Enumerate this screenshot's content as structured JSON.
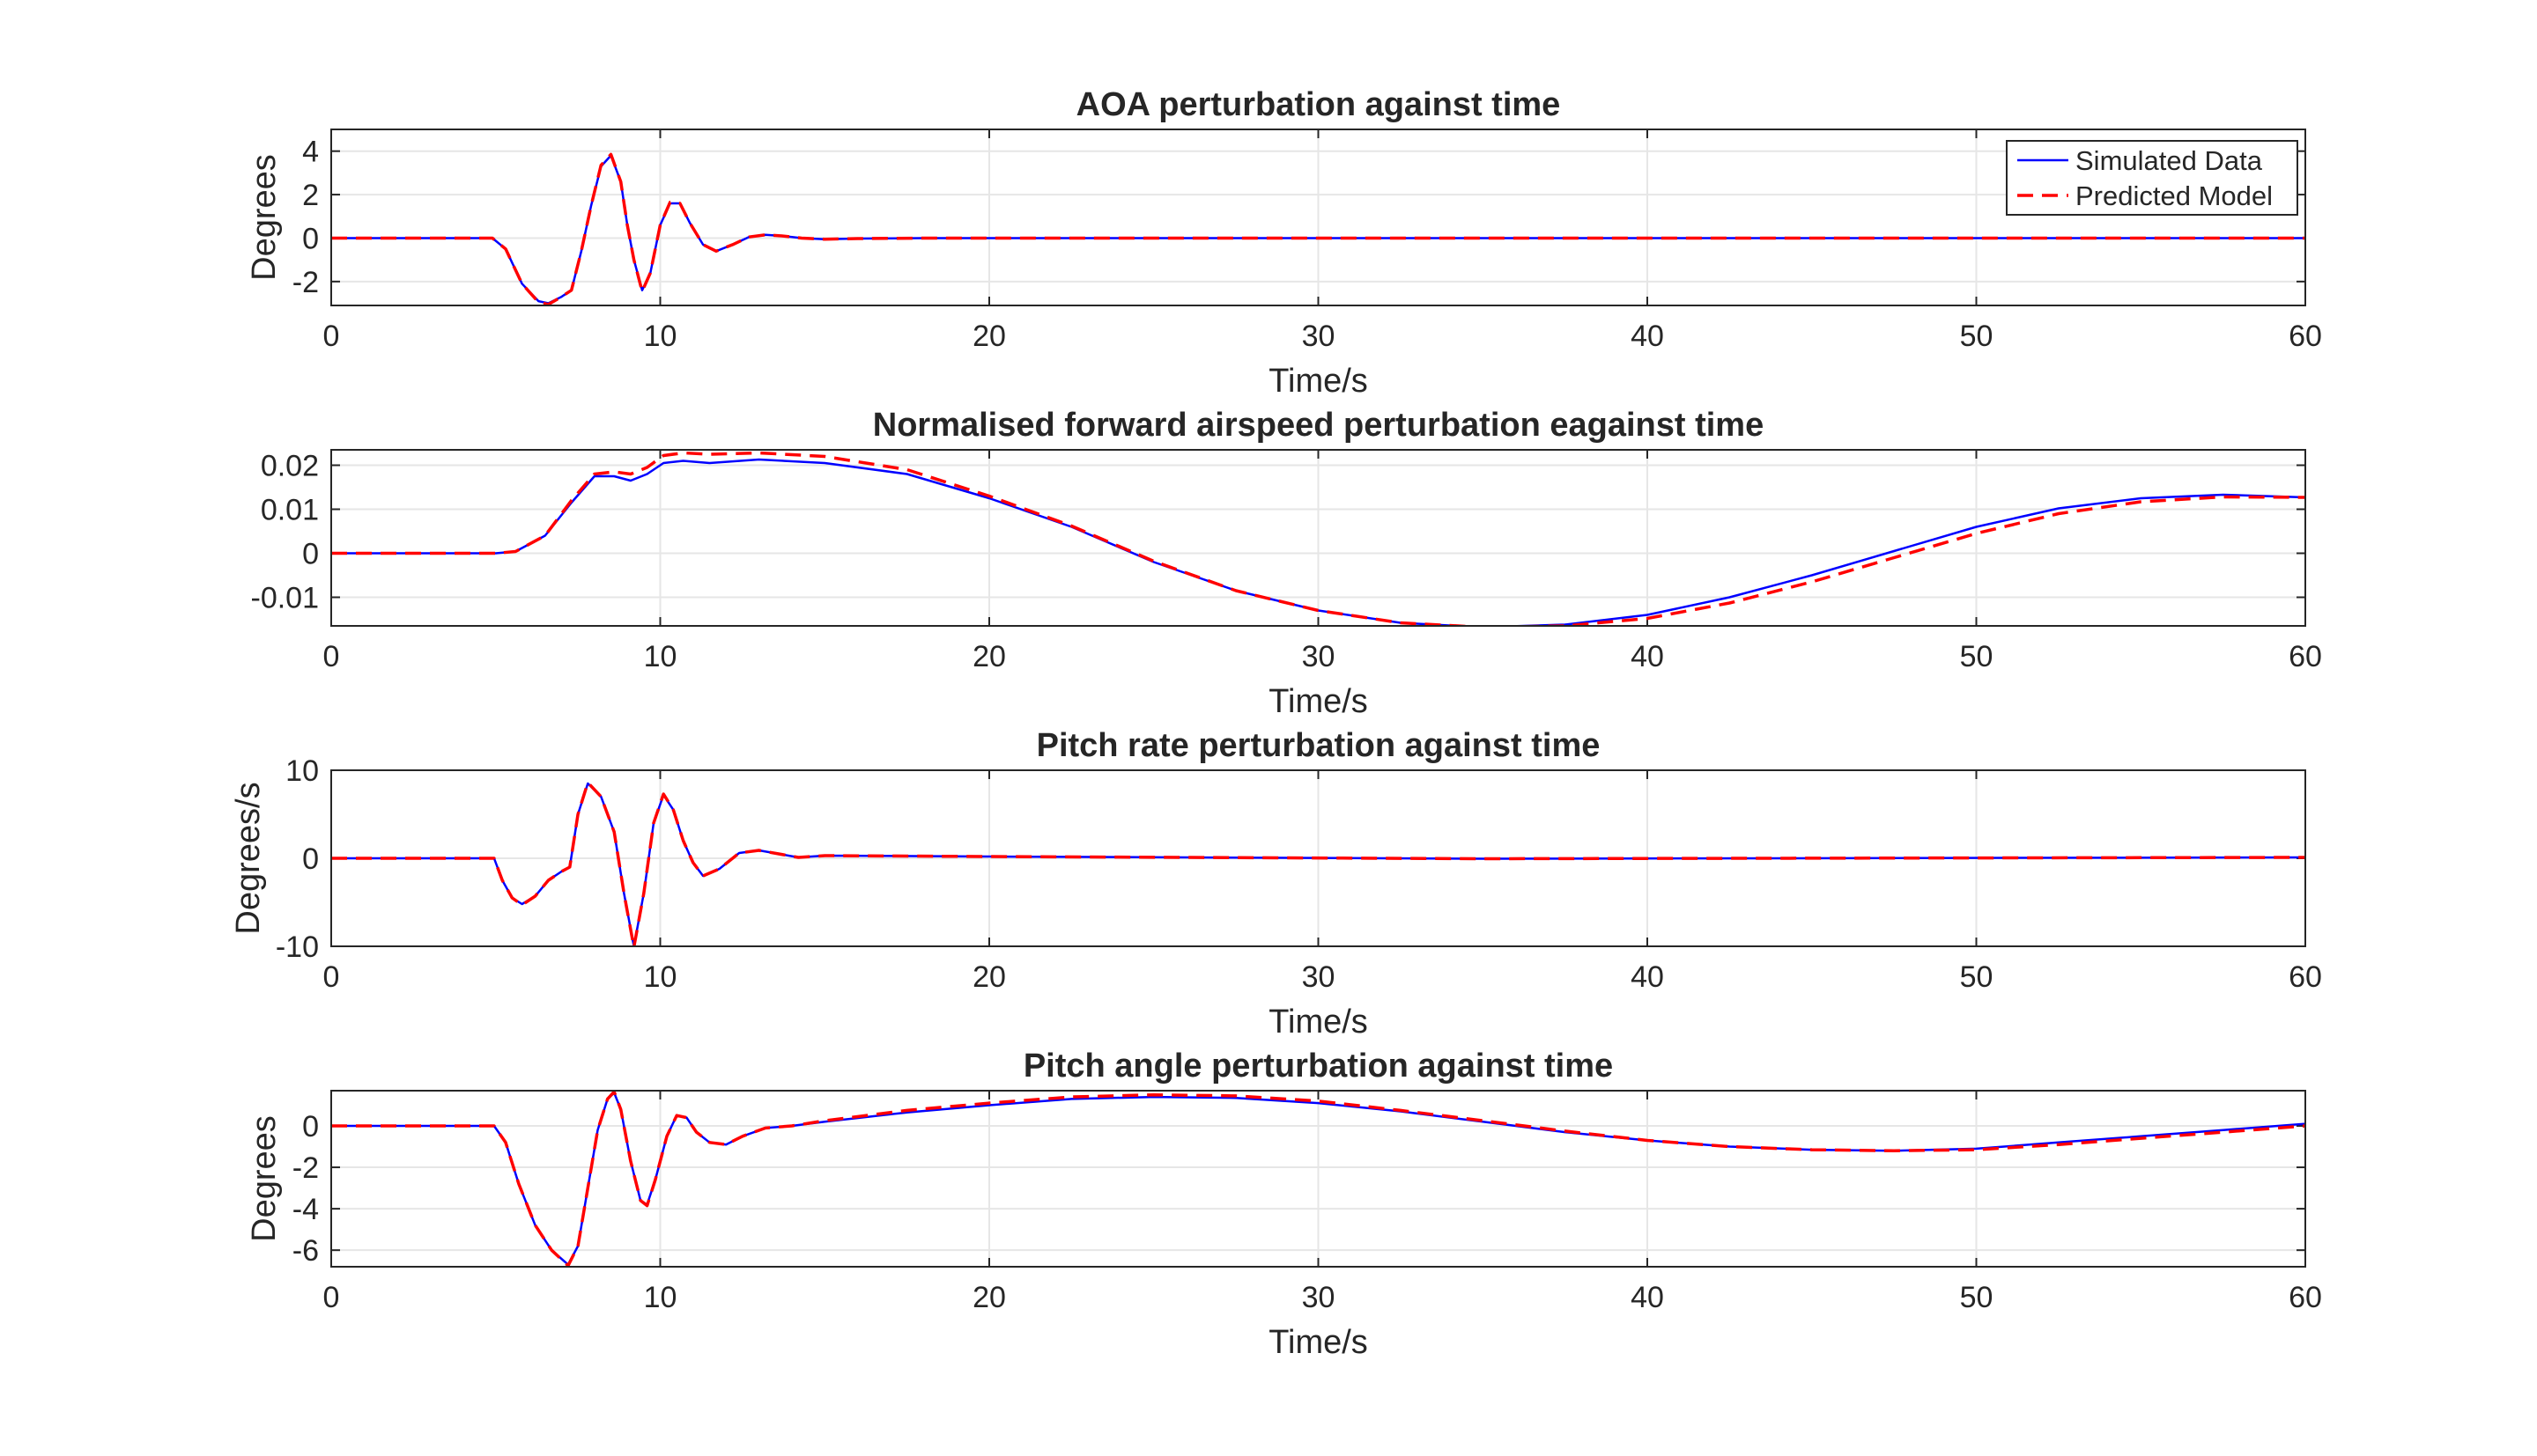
{
  "colors": {
    "simulated": "#0000ff",
    "predicted": "#ff0000",
    "grid": "#e6e6e6",
    "axis": "#262626"
  },
  "legend": {
    "entries": [
      "Simulated Data",
      "Predicted Model"
    ],
    "placement": "top-right of first subplot"
  },
  "chart_data": [
    {
      "type": "line",
      "title": "AOA perturbation against time",
      "xlabel": "Time/s",
      "ylabel": "Degrees",
      "xlim": [
        0,
        60
      ],
      "ylim": [
        -3.1,
        5
      ],
      "xticks": [
        "0",
        "10",
        "20",
        "30",
        "40",
        "50",
        "60"
      ],
      "yticks": [
        "-2",
        "0",
        "2",
        "4"
      ],
      "grid": true,
      "legend": "top-right",
      "series": [
        {
          "name": "Simulated Data",
          "style": "solid",
          "x": [
            0,
            4.9,
            5.3,
            5.8,
            6.3,
            6.6,
            7.0,
            7.3,
            7.6,
            7.9,
            8.2,
            8.5,
            8.8,
            9.0,
            9.2,
            9.45,
            9.7,
            10.0,
            10.3,
            10.6,
            10.9,
            11.3,
            11.7,
            12.2,
            12.7,
            13.2,
            13.7,
            14.3,
            15.0,
            16,
            18,
            60
          ],
          "y": [
            0,
            0,
            -0.5,
            -2.1,
            -2.9,
            -3.0,
            -2.7,
            -2.4,
            -0.6,
            1.5,
            3.3,
            3.8,
            2.6,
            0.6,
            -1.0,
            -2.4,
            -1.6,
            0.6,
            1.6,
            1.6,
            0.7,
            -0.3,
            -0.6,
            -0.3,
            0.05,
            0.15,
            0.1,
            0,
            -0.05,
            -0.02,
            0,
            0
          ]
        },
        {
          "name": "Predicted Model",
          "style": "dashed",
          "x": [
            0,
            4.9,
            5.3,
            5.8,
            6.3,
            6.6,
            7.0,
            7.3,
            7.6,
            7.9,
            8.2,
            8.5,
            8.8,
            9.0,
            9.2,
            9.45,
            9.7,
            10.0,
            10.3,
            10.6,
            10.9,
            11.3,
            11.7,
            12.2,
            12.7,
            13.2,
            13.7,
            14.3,
            15.0,
            16,
            18,
            60
          ],
          "y": [
            0,
            0,
            -0.5,
            -2.1,
            -2.95,
            -3.05,
            -2.7,
            -2.4,
            -0.6,
            1.5,
            3.35,
            3.85,
            2.6,
            0.6,
            -1.0,
            -2.45,
            -1.6,
            0.6,
            1.65,
            1.6,
            0.7,
            -0.3,
            -0.6,
            -0.3,
            0.05,
            0.15,
            0.1,
            0,
            -0.05,
            -0.02,
            0,
            0
          ]
        }
      ]
    },
    {
      "type": "line",
      "title": "Normalised forward airspeed perturbation eagainst time",
      "xlabel": "Time/s",
      "ylabel": "",
      "xlim": [
        0,
        60
      ],
      "ylim": [
        -0.0165,
        0.0235
      ],
      "xticks": [
        "0",
        "10",
        "20",
        "30",
        "40",
        "50",
        "60"
      ],
      "yticks": [
        "-0.01",
        "0",
        "0.01",
        "0.02"
      ],
      "grid": true,
      "series": [
        {
          "name": "Simulated Data",
          "style": "solid",
          "x": [
            0,
            5.0,
            5.6,
            6.5,
            7.3,
            8.0,
            8.6,
            9.1,
            9.6,
            10.1,
            10.7,
            11.5,
            13.0,
            15,
            17.5,
            20,
            22.5,
            25,
            27.5,
            30,
            32.5,
            35,
            37.5,
            40,
            42.5,
            45,
            47.5,
            50,
            52.5,
            55,
            57.5,
            60
          ],
          "y": [
            0,
            0,
            0.0004,
            0.004,
            0.0115,
            0.0175,
            0.0175,
            0.0165,
            0.018,
            0.0205,
            0.021,
            0.0205,
            0.0213,
            0.0205,
            0.018,
            0.0125,
            0.006,
            -0.002,
            -0.0085,
            -0.013,
            -0.0158,
            -0.0168,
            -0.0162,
            -0.014,
            -0.01,
            -0.005,
            0.0005,
            0.006,
            0.0102,
            0.0125,
            0.0133,
            0.0127
          ]
        },
        {
          "name": "Predicted Model",
          "style": "dashed",
          "x": [
            0,
            5.0,
            5.6,
            6.5,
            7.3,
            8.0,
            8.6,
            9.1,
            9.6,
            10.1,
            10.7,
            11.5,
            13.0,
            15,
            17.5,
            20,
            22.5,
            25,
            27.5,
            30,
            32.5,
            35,
            37.5,
            40,
            42.5,
            45,
            47.5,
            50,
            52.5,
            55,
            57.5,
            60
          ],
          "y": [
            0,
            0,
            0.0004,
            0.004,
            0.012,
            0.018,
            0.0185,
            0.018,
            0.0195,
            0.0222,
            0.0228,
            0.0225,
            0.0228,
            0.022,
            0.019,
            0.013,
            0.0062,
            -0.0018,
            -0.0085,
            -0.013,
            -0.0158,
            -0.0168,
            -0.0165,
            -0.0148,
            -0.0113,
            -0.0065,
            -0.001,
            0.0045,
            0.009,
            0.0117,
            0.0128,
            0.0127
          ]
        }
      ]
    },
    {
      "type": "line",
      "title": "Pitch rate perturbation against time",
      "xlabel": "Time/s",
      "ylabel": "Degrees/s",
      "xlim": [
        0,
        60
      ],
      "ylim": [
        -10,
        10
      ],
      "xticks": [
        "0",
        "10",
        "20",
        "30",
        "40",
        "50",
        "60"
      ],
      "yticks": [
        "-10",
        "0",
        "10"
      ],
      "grid": true,
      "series": [
        {
          "name": "Simulated Data",
          "style": "solid",
          "x": [
            0,
            4.95,
            5.2,
            5.5,
            5.8,
            6.2,
            6.6,
            7.0,
            7.25,
            7.5,
            7.8,
            8.2,
            8.6,
            8.9,
            9.2,
            9.5,
            9.8,
            10.1,
            10.4,
            10.7,
            11.0,
            11.3,
            11.8,
            12.4,
            13.0,
            13.6,
            14.2,
            15.0,
            20,
            35,
            60
          ],
          "y": [
            0,
            0,
            -2.5,
            -4.5,
            -5.2,
            -4.3,
            -2.5,
            -1.5,
            -1.0,
            5.0,
            8.5,
            7.0,
            3.0,
            -4.0,
            -10.0,
            -4.0,
            4.0,
            7.2,
            5.5,
            2.0,
            -0.5,
            -2.0,
            -1.2,
            0.6,
            0.9,
            0.5,
            0.1,
            0.3,
            0.2,
            -0.05,
            0.1
          ]
        },
        {
          "name": "Predicted Model",
          "style": "dashed",
          "x": [
            0,
            4.95,
            5.2,
            5.5,
            5.8,
            6.2,
            6.6,
            7.0,
            7.25,
            7.5,
            7.8,
            8.2,
            8.6,
            8.9,
            9.2,
            9.5,
            9.8,
            10.1,
            10.4,
            10.7,
            11.0,
            11.3,
            11.8,
            12.4,
            13.0,
            13.6,
            14.2,
            15.0,
            20,
            35,
            60
          ],
          "y": [
            0,
            0,
            -2.5,
            -4.5,
            -5.3,
            -4.3,
            -2.5,
            -1.5,
            -1.0,
            5.0,
            8.6,
            7.0,
            3.0,
            -4.0,
            -10.1,
            -4.0,
            4.0,
            7.3,
            5.5,
            2.0,
            -0.5,
            -2.0,
            -1.2,
            0.6,
            0.9,
            0.5,
            0.1,
            0.3,
            0.2,
            -0.05,
            0.1
          ]
        }
      ]
    },
    {
      "type": "line",
      "title": "Pitch angle perturbation against time",
      "xlabel": "Time/s",
      "ylabel": "Degrees",
      "xlim": [
        0,
        60
      ],
      "ylim": [
        -6.8,
        1.7
      ],
      "xticks": [
        "0",
        "10",
        "20",
        "30",
        "40",
        "50",
        "60"
      ],
      "yticks": [
        "-6",
        "-4",
        "-2",
        "0"
      ],
      "grid": true,
      "series": [
        {
          "name": "Simulated Data",
          "style": "solid",
          "x": [
            0,
            4.95,
            5.3,
            5.7,
            6.2,
            6.7,
            7.2,
            7.5,
            7.8,
            8.1,
            8.4,
            8.6,
            8.8,
            9.1,
            9.4,
            9.6,
            9.85,
            10.2,
            10.5,
            10.8,
            11.1,
            11.5,
            12.0,
            12.5,
            13.2,
            14.0,
            15.0,
            17.5,
            20,
            22.5,
            25,
            27.5,
            30,
            32.5,
            35,
            37.5,
            40,
            42.5,
            45,
            47.5,
            50,
            52.5,
            55,
            57.5,
            60
          ],
          "y": [
            0,
            0,
            -0.8,
            -2.8,
            -4.8,
            -6.0,
            -6.7,
            -5.8,
            -3.0,
            -0.2,
            1.3,
            1.6,
            0.8,
            -1.7,
            -3.6,
            -3.8,
            -2.6,
            -0.5,
            0.5,
            0.4,
            -0.3,
            -0.8,
            -0.9,
            -0.5,
            -0.1,
            0.0,
            0.2,
            0.65,
            1.0,
            1.3,
            1.4,
            1.35,
            1.1,
            0.7,
            0.2,
            -0.3,
            -0.7,
            -1.0,
            -1.15,
            -1.2,
            -1.1,
            -0.8,
            -0.5,
            -0.2,
            0.1
          ]
        },
        {
          "name": "Predicted Model",
          "style": "dashed",
          "x": [
            0,
            4.95,
            5.3,
            5.7,
            6.2,
            6.7,
            7.2,
            7.5,
            7.8,
            8.1,
            8.4,
            8.6,
            8.8,
            9.1,
            9.4,
            9.6,
            9.85,
            10.2,
            10.5,
            10.8,
            11.1,
            11.5,
            12.0,
            12.5,
            13.2,
            14.0,
            15.0,
            17.5,
            20,
            22.5,
            25,
            27.5,
            30,
            32.5,
            35,
            37.5,
            40,
            42.5,
            45,
            47.5,
            50,
            52.5,
            55,
            57.5,
            60
          ],
          "y": [
            0,
            0,
            -0.8,
            -2.8,
            -4.8,
            -6.0,
            -6.75,
            -5.8,
            -3.0,
            -0.2,
            1.3,
            1.65,
            0.8,
            -1.7,
            -3.6,
            -3.85,
            -2.6,
            -0.5,
            0.5,
            0.4,
            -0.3,
            -0.8,
            -0.9,
            -0.5,
            -0.1,
            0.0,
            0.25,
            0.75,
            1.1,
            1.4,
            1.5,
            1.45,
            1.2,
            0.75,
            0.25,
            -0.25,
            -0.7,
            -1.0,
            -1.15,
            -1.2,
            -1.15,
            -0.9,
            -0.6,
            -0.3,
            0.0
          ]
        }
      ]
    }
  ]
}
